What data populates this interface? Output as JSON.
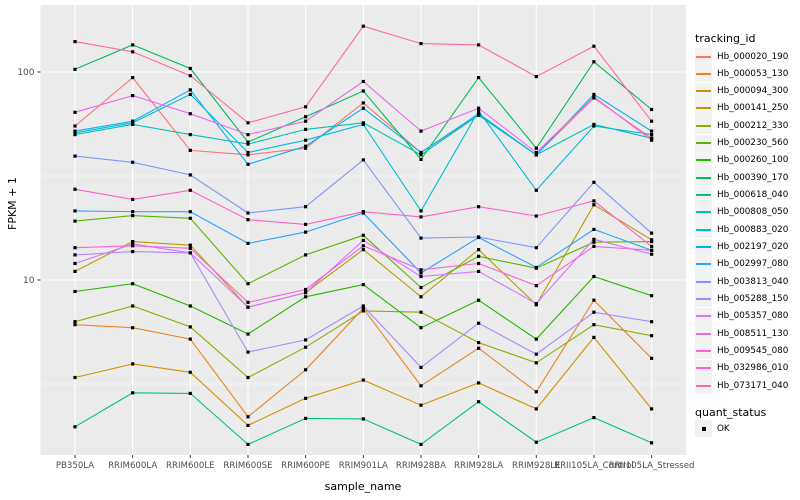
{
  "chart_data": {
    "type": "line",
    "title": "",
    "xlabel": "sample_name",
    "ylabel": "FPKM + 1",
    "y_scale": "log10",
    "y_ticks": [
      10,
      100
    ],
    "y_minor_gridlines": [
      3.162,
      31.62
    ],
    "ylim": [
      1.4,
      210
    ],
    "legend_position": "right",
    "grid": true,
    "point_marker": "black-square",
    "categories": [
      "PB350LA",
      "RRIM600LA",
      "RRIM600LE",
      "RRIM600SE",
      "RRIM600PE",
      "RRIM901LA",
      "RRIM928BA",
      "RRIM928LA",
      "RRIM928LE",
      "RRII105LA_Control",
      "RRII105LA_Stressed"
    ],
    "series": [
      {
        "name": "Hb_000020_190",
        "color": "#F8766D",
        "values": [
          55,
          94,
          42,
          40,
          43,
          71,
          41,
          62,
          40,
          75,
          48
        ]
      },
      {
        "name": "Hb_000053_130",
        "color": "#E88526",
        "values": [
          6.1,
          5.9,
          5.2,
          2.2,
          3.7,
          7.3,
          3.1,
          4.7,
          2.9,
          8.0,
          4.2
        ]
      },
      {
        "name": "Hb_000094_300",
        "color": "#D39200",
        "values": [
          3.4,
          3.95,
          3.6,
          2.0,
          2.7,
          3.3,
          2.5,
          3.2,
          2.4,
          5.3,
          2.4
        ]
      },
      {
        "name": "Hb_000141_250",
        "color": "#B79F00",
        "values": [
          11.0,
          15.3,
          14.7,
          7.4,
          8.7,
          14.0,
          8.3,
          14.0,
          7.6,
          23.0,
          15.6
        ]
      },
      {
        "name": "Hb_000212_330",
        "color": "#93AA00",
        "values": [
          6.3,
          7.5,
          5.95,
          3.4,
          4.75,
          7.1,
          7.0,
          5.0,
          4.0,
          6.1,
          5.4
        ]
      },
      {
        "name": "Hb_000230_560",
        "color": "#5EB300",
        "values": [
          19.2,
          20.4,
          19.8,
          9.6,
          13.2,
          16.4,
          9.2,
          13.0,
          11.4,
          15.2,
          15.3
        ]
      },
      {
        "name": "Hb_000260_100",
        "color": "#24B700",
        "values": [
          8.8,
          9.6,
          7.5,
          5.5,
          8.3,
          9.5,
          5.9,
          8.0,
          5.2,
          10.4,
          8.4
        ]
      },
      {
        "name": "Hb_000390_170",
        "color": "#00BC59",
        "values": [
          103,
          135,
          104,
          46,
          61,
          81,
          38,
          94,
          43,
          112,
          66
        ]
      },
      {
        "name": "Hb_000618_040",
        "color": "#00C08B",
        "values": [
          1.97,
          2.87,
          2.85,
          1.62,
          2.16,
          2.15,
          1.62,
          2.6,
          1.66,
          2.18,
          1.65
        ]
      },
      {
        "name": "Hb_000808_050",
        "color": "#00C0B5",
        "values": [
          50,
          56,
          50,
          45,
          53,
          57,
          40,
          62,
          40,
          56,
          48
        ]
      },
      {
        "name": "Hb_000883_020",
        "color": "#00BCD8",
        "values": [
          51,
          57,
          78,
          41,
          47,
          56,
          21.5,
          65,
          27,
          55,
          50
        ]
      },
      {
        "name": "Hb_002197_020",
        "color": "#00B3F0",
        "values": [
          52,
          58,
          82,
          36,
          44,
          67,
          41,
          63,
          40,
          78,
          52
        ]
      },
      {
        "name": "Hb_002997_080",
        "color": "#29A3FF",
        "values": [
          21.5,
          21.3,
          21.3,
          15,
          17,
          21,
          10.8,
          16,
          11.5,
          17.5,
          13.9
        ]
      },
      {
        "name": "Hb_003813_040",
        "color": "#7E96FF",
        "values": [
          39.4,
          36.8,
          32,
          21,
          22.5,
          37.8,
          15.9,
          16.1,
          14.3,
          29.5,
          16.8
        ]
      },
      {
        "name": "Hb_005288_150",
        "color": "#AE87FF",
        "values": [
          13.2,
          13.7,
          13.5,
          4.5,
          5.15,
          7.5,
          3.8,
          6.2,
          4.4,
          7.0,
          6.3
        ]
      },
      {
        "name": "Hb_005357_080",
        "color": "#D277FF",
        "values": [
          12.0,
          14.9,
          13.5,
          7.4,
          8.7,
          15.5,
          10.4,
          11.0,
          7.7,
          15.7,
          13.3
        ]
      },
      {
        "name": "Hb_008511_130",
        "color": "#EB69EF",
        "values": [
          64,
          77,
          63,
          50,
          58,
          90,
          52,
          67,
          41,
          76,
          47
        ]
      },
      {
        "name": "Hb_009545_080",
        "color": "#F863DF",
        "values": [
          14.3,
          14.6,
          14.2,
          7.8,
          9.0,
          14.6,
          11.2,
          12.0,
          9.4,
          14.5,
          13.9
        ]
      },
      {
        "name": "Hb_032986_010",
        "color": "#FF61C7",
        "values": [
          27.3,
          24.4,
          27,
          19.5,
          18.5,
          21.3,
          20.1,
          22.5,
          20.3,
          24,
          14.5
        ]
      },
      {
        "name": "Hb_073171_040",
        "color": "#FF68A1",
        "values": [
          140,
          125,
          96,
          57,
          68,
          166,
          137,
          135,
          95,
          133,
          58
        ]
      }
    ]
  },
  "legend": {
    "tracking_title": "tracking_id",
    "quant_title": "quant_status",
    "quant_items": [
      {
        "label": "OK",
        "marker": "black-square"
      }
    ]
  },
  "colors": {
    "panel_bg": "#EBEBEB",
    "grid": "#FFFFFF",
    "tick_text": "#4D4D4D",
    "axis_text": "#000000",
    "marker": "#000000",
    "legend_key_bg": "#F2F2F2"
  }
}
